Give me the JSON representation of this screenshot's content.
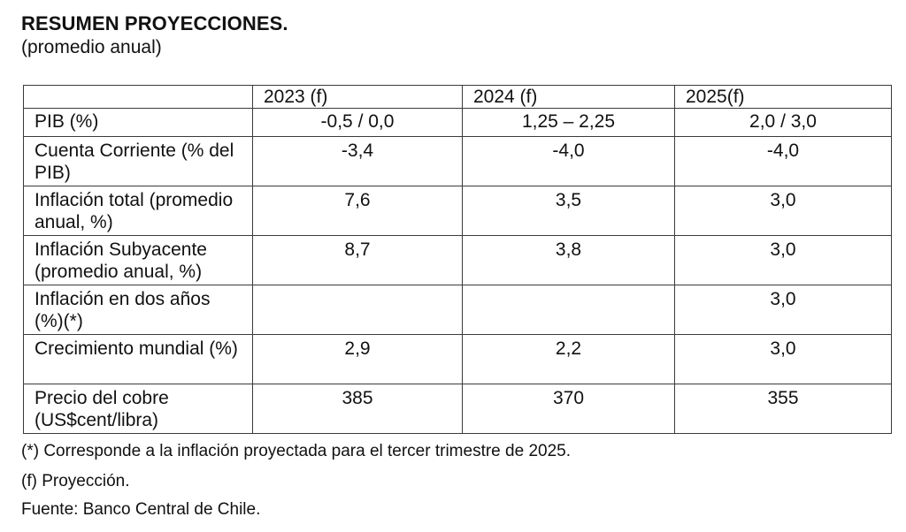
{
  "title": "RESUMEN PROYECCIONES.",
  "subtitle": "(promedio anual)",
  "table": {
    "headers": [
      "",
      "2023 (f)",
      "2024 (f)",
      "2025(f)"
    ],
    "rows": [
      {
        "label": "PIB (%)",
        "values": [
          "-0,5 / 0,0",
          "1,25 – 2,25",
          "2,0 / 3,0"
        ]
      },
      {
        "label": "Cuenta Corriente (% del PIB)",
        "values": [
          "-3,4",
          "-4,0",
          "-4,0"
        ]
      },
      {
        "label": "Inflación total (promedio anual, %)",
        "values": [
          "7,6",
          "3,5",
          "3,0"
        ]
      },
      {
        "label": "Inflación Subyacente (promedio anual, %)",
        "values": [
          "8,7",
          "3,8",
          "3,0"
        ]
      },
      {
        "label": "Inflación en dos años (%)(*)",
        "values": [
          "",
          "",
          "3,0"
        ]
      },
      {
        "label": "Crecimiento mundial (%)",
        "values": [
          "2,9",
          "2,2",
          "3,0"
        ]
      },
      {
        "label": "Precio del cobre (US$cent/libra)",
        "values": [
          "385",
          "370",
          "355"
        ]
      }
    ]
  },
  "notes": {
    "footnote": "(*) Corresponde a la inflación proyectada para el tercer trimestre de 2025.",
    "forecast": "(f) Proyección.",
    "source": "Fuente: Banco Central de Chile."
  }
}
